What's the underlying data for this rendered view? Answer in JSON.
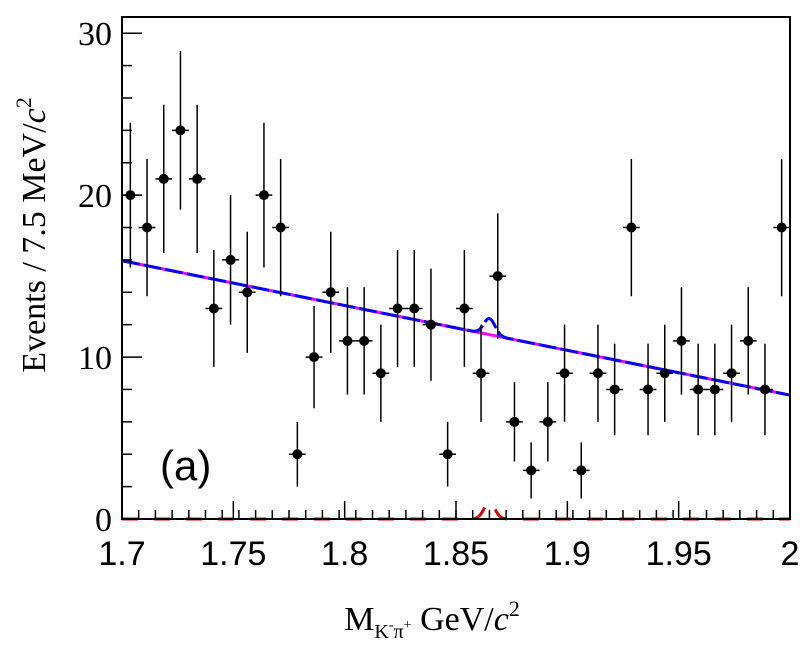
{
  "chart_data": {
    "type": "scatter",
    "title": "",
    "annotation": "(a)",
    "xlabel": {
      "base": "M",
      "sub_k": "K",
      "sub_k_sign": "-",
      "sub_pi": "π",
      "sub_pi_sign": "+",
      "units": " GeV/",
      "c": "c",
      "exp": "2"
    },
    "ylabel": {
      "prefix": "Events / 7.5 MeV/",
      "c": "c",
      "exp": "2"
    },
    "xlim": [
      1.7,
      2.0
    ],
    "ylim": [
      0,
      31
    ],
    "x_ticks": [
      1.7,
      1.75,
      1.8,
      1.85,
      1.9,
      1.95,
      2.0
    ],
    "x_tick_labels": [
      "1.7",
      "1.75",
      "1.8",
      "1.85",
      "1.9",
      "1.95",
      "2"
    ],
    "y_ticks": [
      0,
      10,
      20,
      30
    ],
    "y_tick_labels": [
      "0",
      "10",
      "20",
      "30"
    ],
    "bin_width": 0.0075,
    "data_points": {
      "name": "Data",
      "color": "#000000",
      "x": [
        1.70375,
        1.71125,
        1.71875,
        1.72625,
        1.73375,
        1.74125,
        1.74875,
        1.75625,
        1.76375,
        1.77125,
        1.77875,
        1.78625,
        1.79375,
        1.80125,
        1.80875,
        1.81625,
        1.82375,
        1.83125,
        1.83875,
        1.84625,
        1.85375,
        1.86125,
        1.86875,
        1.87625,
        1.88375,
        1.89125,
        1.89875,
        1.90625,
        1.91375,
        1.92125,
        1.92875,
        1.93625,
        1.94375,
        1.95125,
        1.95875,
        1.96625,
        1.97375,
        1.98125,
        1.98875,
        1.99625
      ],
      "y": [
        20,
        18,
        21,
        24,
        21,
        13,
        16,
        14,
        20,
        18,
        4,
        10,
        14,
        11,
        11,
        9,
        13,
        13,
        12,
        4,
        13,
        9,
        15,
        6,
        3,
        6,
        9,
        3,
        9,
        8,
        18,
        8,
        9,
        11,
        8,
        8,
        9,
        11,
        8,
        18
      ]
    },
    "series": [
      {
        "name": "Background",
        "color": "#ff00ff",
        "style": "solid",
        "x": [
          1.7,
          2.0
        ],
        "y": [
          15.95,
          7.65
        ]
      },
      {
        "name": "Total fit",
        "color": "#0000ff",
        "style": "dashed",
        "x": [
          1.7,
          2.0
        ],
        "y": [
          15.95,
          7.65
        ],
        "peak_mean": 1.865,
        "peak_sigma": 0.0025,
        "peak_amp": 1.0
      },
      {
        "name": "Signal",
        "color": "#dd0000",
        "style": "dashed",
        "x": [
          1.7,
          2.0
        ],
        "y": [
          0,
          0
        ],
        "peak_mean": 1.865,
        "peak_sigma": 0.0025,
        "peak_amp": 1.0
      }
    ]
  }
}
